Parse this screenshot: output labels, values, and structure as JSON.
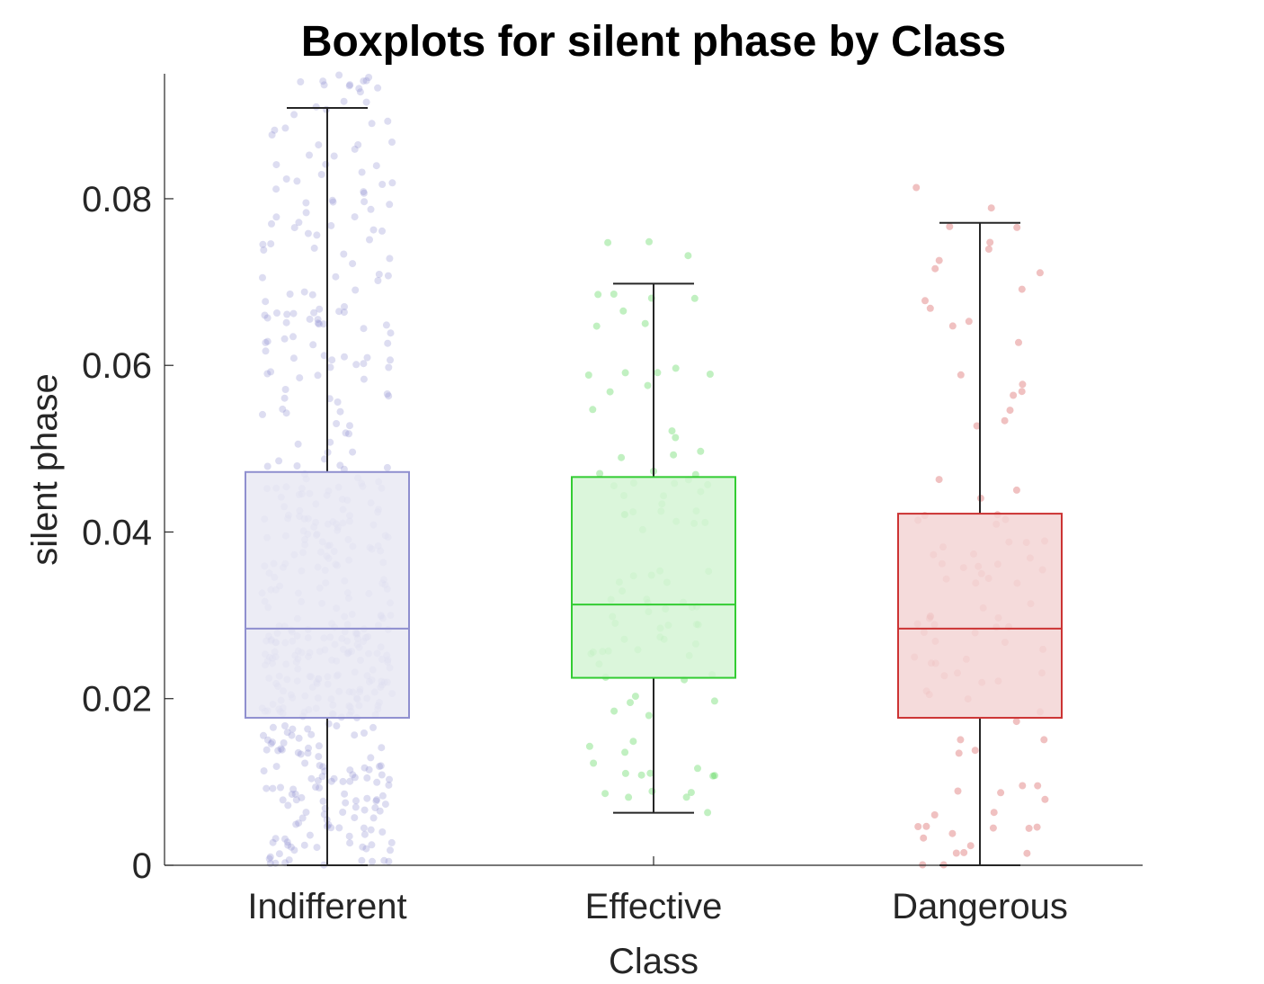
{
  "chart_data": {
    "type": "box",
    "title": "Boxplots for silent phase by Class",
    "xlabel": "Class",
    "ylabel": "silent phase",
    "categories": [
      "Indifferent",
      "Effective",
      "Dangerous"
    ],
    "ylim": [
      0,
      0.095
    ],
    "yticks": [
      0,
      0.02,
      0.04,
      0.06,
      0.08
    ],
    "ytick_labels": [
      "0",
      "0.02",
      "0.04",
      "0.06",
      "0.08"
    ],
    "grid": false,
    "series": [
      {
        "category": "Indifferent",
        "color": "#8f8fcf",
        "fill": "#e9e9f3",
        "whisker_low": 0.0,
        "q1": 0.0177,
        "median": 0.0284,
        "q3": 0.0472,
        "whisker_high": 0.0909,
        "n_points": 520
      },
      {
        "category": "Effective",
        "color": "#33cc33",
        "fill": "#d5f5d5",
        "whisker_low": 0.0063,
        "q1": 0.0225,
        "median": 0.0313,
        "q3": 0.0466,
        "whisker_high": 0.0698,
        "n_points": 100
      },
      {
        "category": "Dangerous",
        "color": "#cc3333",
        "fill": "#f3d5d5",
        "whisker_low": 0.0,
        "q1": 0.0177,
        "median": 0.0284,
        "q3": 0.0422,
        "whisker_high": 0.0771,
        "n_points": 100
      }
    ]
  }
}
